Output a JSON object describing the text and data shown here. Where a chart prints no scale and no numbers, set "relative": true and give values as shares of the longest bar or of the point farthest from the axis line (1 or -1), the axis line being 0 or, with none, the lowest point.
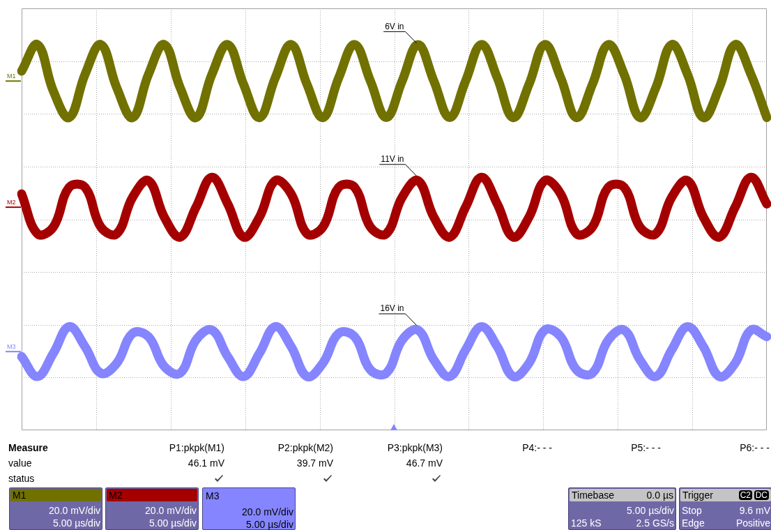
{
  "chart_data": {
    "type": "line",
    "relative": true,
    "grid": true,
    "legend": false,
    "marker": "none",
    "line_style": "solid",
    "categories": [
      null,
      null,
      null,
      null,
      null,
      null,
      null,
      null,
      null,
      null,
      null,
      null,
      null,
      null,
      null,
      null,
      null,
      null,
      null,
      null,
      null,
      null,
      null,
      null,
      null,
      null,
      null,
      null,
      null,
      null,
      null,
      null,
      null,
      null,
      null,
      null,
      null,
      null,
      null,
      null,
      null,
      null,
      null,
      null,
      null,
      null,
      null,
      null
    ],
    "series": [
      {
        "name": "M1",
        "color": "#717100",
        "values": [
          0.92,
          1.0,
          0.86,
          0.78,
          0.91,
          1.0,
          0.87,
          0.78,
          0.91,
          1.0,
          0.87,
          0.78,
          0.91,
          1.0,
          0.88,
          0.78,
          0.9,
          1.0,
          0.88,
          0.78,
          0.9,
          1.0,
          0.89,
          0.78,
          0.89,
          1.0,
          0.89,
          0.78,
          0.89,
          1.0,
          0.9,
          0.78,
          0.88,
          1.0,
          0.9,
          0.78,
          0.88,
          1.0,
          0.91,
          0.78,
          0.87,
          1.0,
          0.91,
          0.78,
          0.87,
          1.0,
          0.91,
          0.78
        ]
      },
      {
        "name": "M2",
        "color": "#a50000",
        "values": [
          0.55,
          0.43,
          0.45,
          0.57,
          0.57,
          0.45,
          0.43,
          0.54,
          0.59,
          0.48,
          0.42,
          0.51,
          0.6,
          0.52,
          0.42,
          0.48,
          0.59,
          0.55,
          0.43,
          0.45,
          0.57,
          0.57,
          0.45,
          0.43,
          0.54,
          0.59,
          0.48,
          0.42,
          0.51,
          0.6,
          0.52,
          0.42,
          0.48,
          0.59,
          0.55,
          0.43,
          0.45,
          0.57,
          0.57,
          0.45,
          0.43,
          0.54,
          0.59,
          0.48,
          0.42,
          0.51,
          0.6,
          0.52
        ]
      },
      {
        "name": "M3",
        "color": "#8585ff",
        "values": [
          0.06,
          0.0,
          0.07,
          0.15,
          0.09,
          0.01,
          0.04,
          0.13,
          0.12,
          0.03,
          0.01,
          0.11,
          0.14,
          0.06,
          0.0,
          0.07,
          0.15,
          0.09,
          0.0,
          0.04,
          0.13,
          0.12,
          0.02,
          0.01,
          0.11,
          0.14,
          0.05,
          0.0,
          0.08,
          0.15,
          0.09,
          0.0,
          0.04,
          0.14,
          0.12,
          0.02,
          0.01,
          0.11,
          0.14,
          0.05,
          0.0,
          0.08,
          0.15,
          0.09,
          0.0,
          0.04,
          0.14,
          0.12
        ]
      }
    ],
    "annotations": [
      "6V in",
      "11V in",
      "16V in",
      "Measure",
      "value",
      "status",
      "P1:pkpk(M1)",
      "46.1 mV",
      "P2:pkpk(M2)",
      "39.7 mV",
      "P3:pkpk(M3)",
      "46.7 mV",
      "P4:- - -",
      "P5:- - -",
      "P6:- - -",
      "20.0 mV/div",
      "5.00 µs/div",
      "20.0 mV/div",
      "5.00 µs/div",
      "20.0 mV/div",
      "5.00 µs/div",
      "Timebase",
      "0.0 µs",
      "5.00 µs/div",
      "125 kS",
      "2.5 GS/s",
      "Trigger",
      "C2",
      "DC",
      "Stop",
      "9.6 mV",
      "Edge",
      "Positive"
    ]
  }
}
